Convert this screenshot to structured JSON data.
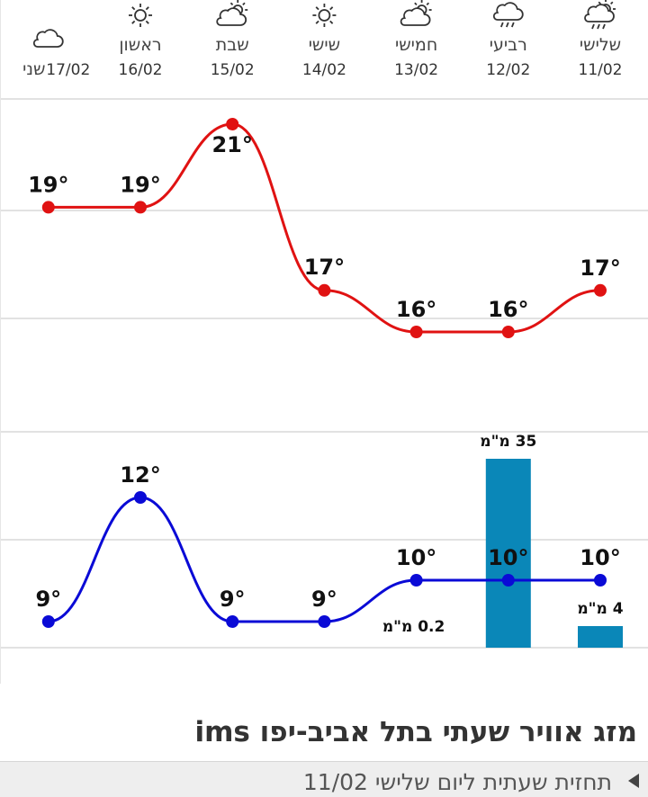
{
  "page": {
    "title": "מזג אוויר שעתי בתל אביב-יפו ims",
    "forecast_link": "תחזית שעתית ליום שלישי 11/02"
  },
  "chart_data": {
    "type": "line",
    "categories": [
      "11/02",
      "12/02",
      "13/02",
      "14/02",
      "15/02",
      "16/02",
      "17/02"
    ],
    "day_names": [
      "שלישי",
      "רביעי",
      "חמישי",
      "שישי",
      "שבת",
      "ראשון",
      "שני"
    ],
    "icons": [
      "rain-sun-icon",
      "rain-icon",
      "partly-cloudy-icon",
      "sun-icon",
      "partly-cloudy-icon",
      "sun-icon",
      "cloud-icon"
    ],
    "series": [
      {
        "values": [
          17,
          16,
          16,
          17,
          21,
          19,
          19
        ],
        "color": "#e01212"
      },
      {
        "values": [
          10,
          10,
          10,
          9,
          9,
          12,
          9
        ],
        "color": "#0a0ad6"
      }
    ],
    "precipitation": {
      "values": [
        4,
        35,
        0.2,
        0,
        0,
        0,
        0
      ],
      "labels": [
        "4 מ\"מ",
        "35 מ\"מ",
        "0.2 מ\"מ",
        "",
        "",
        "",
        ""
      ],
      "color": "#0a87b8"
    },
    "temp_labels_suffix": "°",
    "grid": true
  }
}
